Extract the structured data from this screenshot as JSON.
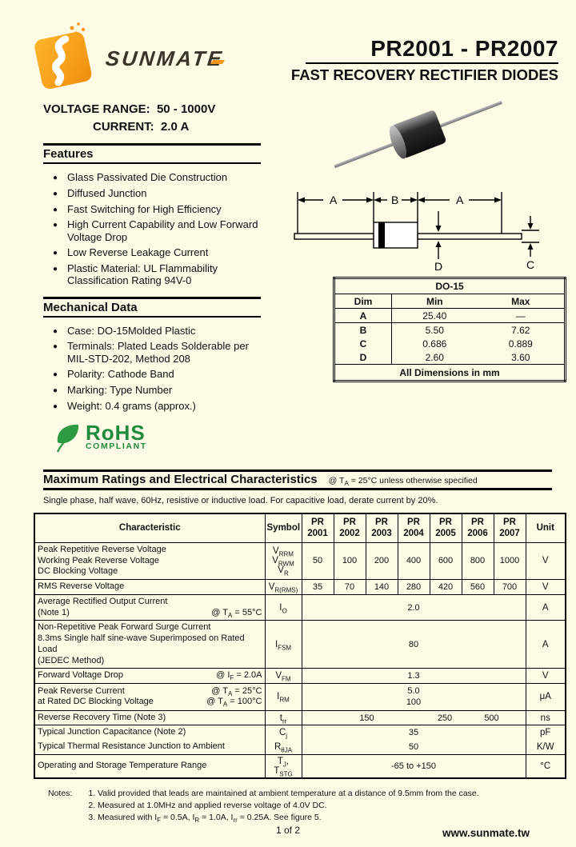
{
  "colors": {
    "background": "#FDFBE5",
    "brand_orange": "#F7941D",
    "rohs_green": "#1E8C3C",
    "text": "#111111"
  },
  "header": {
    "brand": "SUNMATE",
    "title": "PR2001 - PR2007",
    "subtitle": "FAST RECOVERY RECTIFIER DIODES"
  },
  "summary": {
    "voltage_label": "VOLTAGE  RANGE:",
    "voltage_value": "50 - 1000V",
    "current_label": "CURRENT:",
    "current_value": "2.0 A"
  },
  "features": {
    "heading": "Features",
    "items": [
      "Glass Passivated Die Construction",
      "Diffused Junction",
      "Fast Switching for High Efficiency",
      "High Current Capability and Low Forward Voltage Drop",
      "Low Reverse Leakage Current",
      "Plastic Material: UL Flammability Classification Rating 94V-0"
    ]
  },
  "mechanical": {
    "heading": "Mechanical Data",
    "items": [
      "Case: DO-15Molded Plastic",
      "Terminals: Plated Leads Solderable per MIL-STD-202, Method 208",
      "Polarity: Cathode Band",
      "Marking: Type Number",
      "Weight:  0.4 grams (approx.)"
    ]
  },
  "rohs": {
    "name": "RoHS",
    "compliant": "COMPLIANT"
  },
  "package": {
    "diagram_labels": {
      "a_left": "A",
      "b": "B",
      "a_right": "A",
      "c": "C",
      "d": "D"
    },
    "table": {
      "title": "DO-15",
      "headers": [
        "Dim",
        "Min",
        "Max"
      ],
      "rows": [
        [
          "A",
          "25.40",
          "—"
        ],
        [
          "B",
          "5.50",
          "7.62"
        ],
        [
          "C",
          "0.686",
          "0.889"
        ],
        [
          "D",
          "2.60",
          "3.60"
        ]
      ],
      "footer": "All Dimensions in mm"
    }
  },
  "ratings": {
    "heading": "Maximum Ratings and Electrical Characteristics",
    "condition_parts": [
      {
        "t": "@ T"
      },
      {
        "s": "A"
      },
      {
        "t": " = 25°C unless otherwise specified"
      }
    ],
    "subtitle": "Single phase, half wave, 60Hz, resistive or inductive load. For capacitive load, derate current by 20%.",
    "header": {
      "characteristic": "Characteristic",
      "symbol": "Symbol",
      "unit": "Unit",
      "models": [
        {
          "l1": "PR",
          "l2": "2001"
        },
        {
          "l1": "PR",
          "l2": "2002"
        },
        {
          "l1": "PR",
          "l2": "2003"
        },
        {
          "l1": "PR",
          "l2": "2004"
        },
        {
          "l1": "PR",
          "l2": "2005"
        },
        {
          "l1": "PR",
          "l2": "2006"
        },
        {
          "l1": "PR",
          "l2": "2007"
        }
      ]
    },
    "rows": {
      "reverse_voltage": {
        "lines": [
          "Peak Repetitive Reverse Voltage",
          "Working Peak Reverse Voltage",
          "DC Blocking Voltage"
        ],
        "sym1": [
          {
            "t": "V"
          },
          {
            "s": "RRM"
          }
        ],
        "sym2": [
          {
            "t": "V"
          },
          {
            "s": "RWM"
          }
        ],
        "sym3": [
          {
            "t": "V"
          },
          {
            "s": "R"
          }
        ],
        "values": [
          "50",
          "100",
          "200",
          "400",
          "600",
          "800",
          "1000"
        ],
        "unit": "V"
      },
      "rms_voltage": {
        "label": "RMS Reverse Voltage",
        "sym": [
          {
            "t": "V"
          },
          {
            "s": "R(RMS)"
          }
        ],
        "values": [
          "35",
          "70",
          "140",
          "280",
          "420",
          "560",
          "700"
        ],
        "unit": "V"
      },
      "avg_current": {
        "line1": "Average Rectified Output Current",
        "line2": "(Note 1)",
        "cond": [
          {
            "t": "@ T"
          },
          {
            "s": "A"
          },
          {
            "t": " = 55°C"
          }
        ],
        "sym": [
          {
            "t": "I"
          },
          {
            "s": "O"
          }
        ],
        "value": "2.0",
        "unit": "A"
      },
      "surge_current": {
        "lines": [
          "Non-Repetitive Peak Forward Surge Current",
          "8.3ms Single half sine-wave Superimposed on Rated Load",
          "(JEDEC Method)"
        ],
        "sym": [
          {
            "t": "I"
          },
          {
            "s": "FSM"
          }
        ],
        "value": "80",
        "unit": "A"
      },
      "forward_voltage": {
        "label": "Forward Voltage Drop",
        "cond": [
          {
            "t": "@ I"
          },
          {
            "s": "F"
          },
          {
            "t": " = 2.0A"
          }
        ],
        "sym": [
          {
            "t": "V"
          },
          {
            "s": "FM"
          }
        ],
        "value": "1.3",
        "unit": "V"
      },
      "reverse_current": {
        "line1": "Peak Reverse Current",
        "line2": "at Rated DC Blocking Voltage",
        "cond1": [
          {
            "t": "@ T"
          },
          {
            "s": "A"
          },
          {
            "t": " =  25°C"
          }
        ],
        "cond2": [
          {
            "t": "@ T"
          },
          {
            "s": "A"
          },
          {
            "t": " = 100°C"
          }
        ],
        "sym": [
          {
            "t": "I"
          },
          {
            "s": "RM"
          }
        ],
        "value1": "5.0",
        "value2": "100",
        "unit": "μA"
      },
      "recovery_time": {
        "label": "Reverse Recovery Time (Note 3)",
        "sym": [
          {
            "t": "t"
          },
          {
            "s": "rr"
          }
        ],
        "value1": "150",
        "value2": "250",
        "value3": "500",
        "unit": "ns"
      },
      "junction_capacitance": {
        "label": "Typical Junction Capacitance (Note 2)",
        "sym": [
          {
            "t": "C"
          },
          {
            "s": "j"
          }
        ],
        "value": "35",
        "unit": "pF"
      },
      "thermal_resistance": {
        "label": "Typical Thermal Resistance Junction to Ambient",
        "sym": [
          {
            "t": "R"
          },
          {
            "s": "θJA"
          }
        ],
        "value": "50",
        "unit": "K/W"
      },
      "temperature_range": {
        "label": "Operating and Storage Temperature Range",
        "sym": [
          {
            "t": "T"
          },
          {
            "s": "J"
          },
          {
            "t": ", T"
          },
          {
            "s": "STG"
          }
        ],
        "value": "-65 to +150",
        "unit": "°C"
      }
    }
  },
  "notes": {
    "label": "Notes:",
    "items": [
      [
        {
          "t": "1.  Valid provided that leads are maintained at ambient temperature at a distance of 9.5mm from the case."
        }
      ],
      [
        {
          "t": "2.  Measured at 1.0MHz and applied reverse voltage of 4.0V DC."
        }
      ],
      [
        {
          "t": "3.  Measured with I"
        },
        {
          "s": "F"
        },
        {
          "t": " = 0.5A, I"
        },
        {
          "s": "R"
        },
        {
          "t": " = 1.0A, I"
        },
        {
          "s": "rr"
        },
        {
          "t": " = 0.25A. See figure 5."
        }
      ]
    ]
  },
  "footer": {
    "page": "1 of 2",
    "website": "www.sunmate.tw"
  }
}
